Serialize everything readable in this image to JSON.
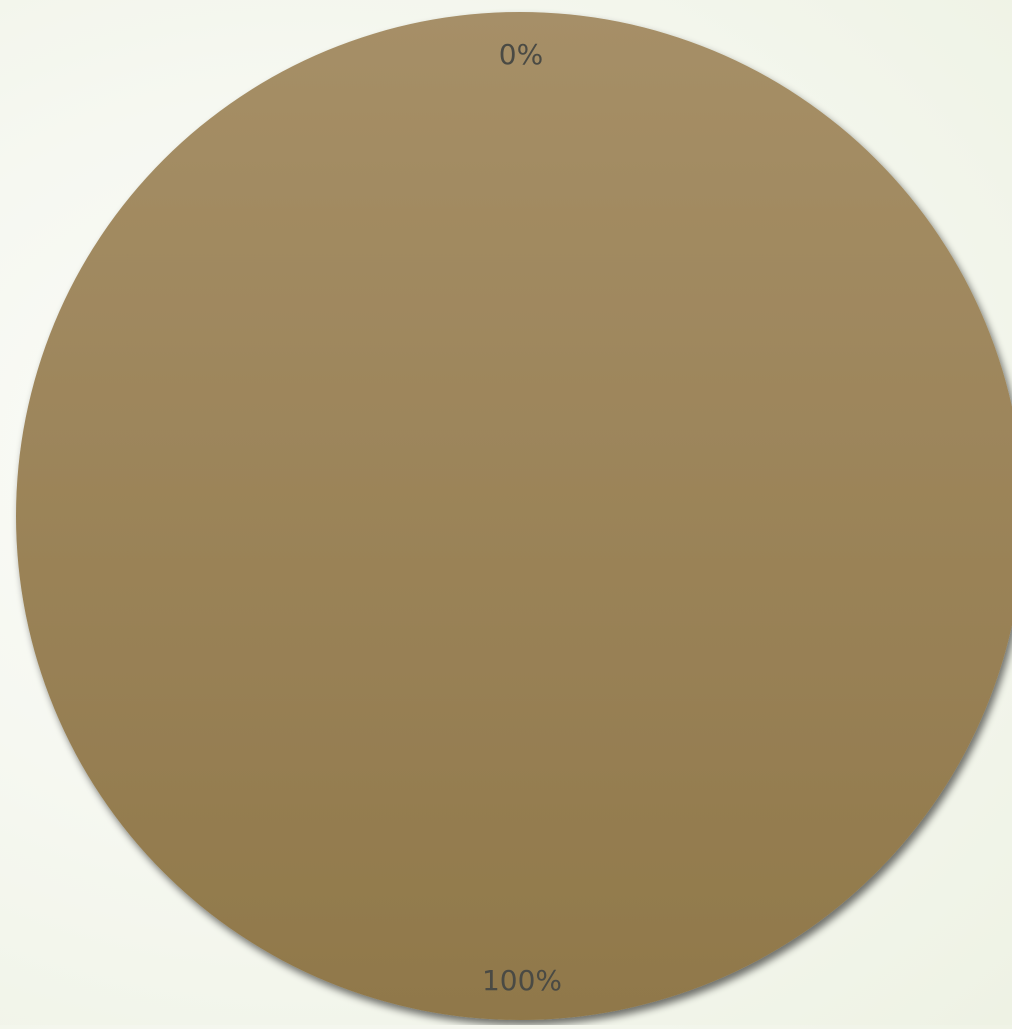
{
  "chart_data": {
    "type": "pie",
    "categories": [
      "",
      ""
    ],
    "values": [
      0,
      100
    ],
    "data_labels": [
      "0%",
      "100%"
    ],
    "colors": [
      "#a78f66",
      "#a78f66"
    ],
    "gradient": {
      "top": "#a68f67",
      "bottom": "#90784a"
    },
    "title": "",
    "legend": "none"
  }
}
